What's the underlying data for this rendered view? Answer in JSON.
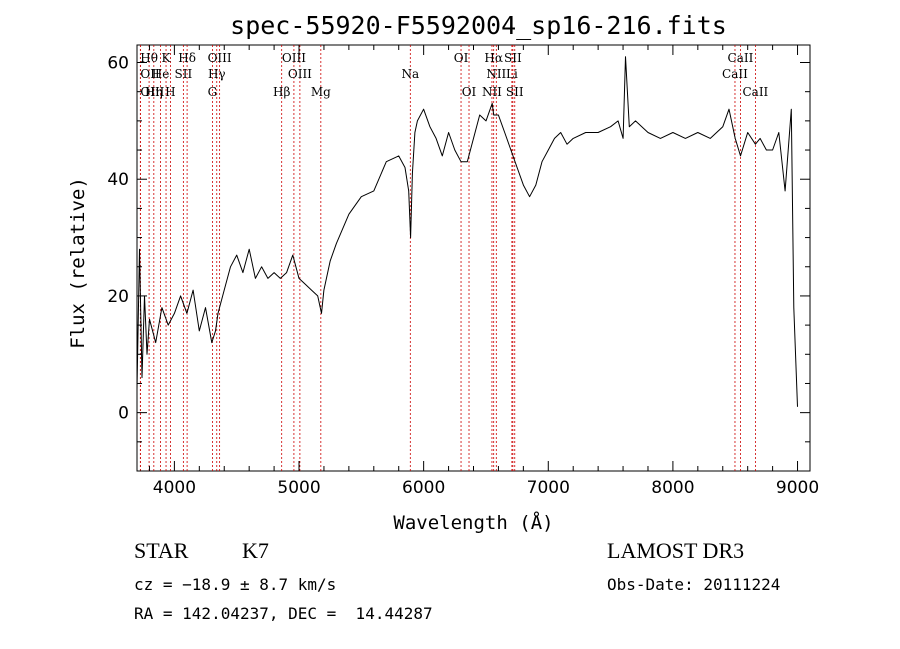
{
  "chart_data": {
    "type": "line",
    "title": "spec-55920-F5592004_sp16-216.fits",
    "xlabel": "Wavelength (Å)",
    "ylabel": "Flux (relative)",
    "xlim": [
      3700,
      9100
    ],
    "ylim": [
      -10,
      63
    ],
    "x_ticks": [
      4000,
      5000,
      6000,
      7000,
      8000,
      9000
    ],
    "y_ticks": [
      0,
      20,
      40,
      60
    ],
    "series": [
      {
        "name": "spectrum",
        "x": [
          3700,
          3720,
          3740,
          3760,
          3780,
          3800,
          3850,
          3900,
          3950,
          4000,
          4050,
          4100,
          4150,
          4200,
          4250,
          4300,
          4330,
          4350,
          4400,
          4450,
          4500,
          4550,
          4600,
          4650,
          4700,
          4750,
          4800,
          4850,
          4900,
          4950,
          5000,
          5050,
          5100,
          5150,
          5180,
          5200,
          5250,
          5300,
          5400,
          5500,
          5600,
          5700,
          5800,
          5850,
          5880,
          5895,
          5910,
          5930,
          5950,
          6000,
          6050,
          6100,
          6150,
          6200,
          6250,
          6300,
          6350,
          6400,
          6450,
          6500,
          6550,
          6562,
          6600,
          6650,
          6700,
          6750,
          6800,
          6850,
          6900,
          6950,
          7000,
          7050,
          7100,
          7150,
          7200,
          7300,
          7400,
          7500,
          7560,
          7600,
          7620,
          7650,
          7700,
          7800,
          7900,
          8000,
          8100,
          8200,
          8300,
          8400,
          8450,
          8500,
          8542,
          8600,
          8662,
          8700,
          8750,
          8800,
          8850,
          8900,
          8950,
          8970,
          9000
        ],
        "values": [
          4,
          28,
          6,
          20,
          10,
          16,
          12,
          18,
          15,
          17,
          20,
          17,
          21,
          14,
          18,
          12,
          14,
          17,
          21,
          25,
          27,
          24,
          28,
          23,
          25,
          23,
          24,
          23,
          24,
          27,
          23,
          22,
          21,
          20,
          17,
          21,
          26,
          29,
          34,
          37,
          38,
          43,
          44,
          42,
          38,
          30,
          41,
          48,
          50,
          52,
          49,
          47,
          44,
          48,
          45,
          43,
          43,
          47,
          51,
          50,
          53,
          51,
          51,
          48,
          45,
          42,
          39,
          37,
          39,
          43,
          45,
          47,
          48,
          46,
          47,
          48,
          48,
          49,
          50,
          47,
          61,
          49,
          50,
          48,
          47,
          48,
          47,
          48,
          47,
          49,
          52,
          47,
          44,
          48,
          46,
          47,
          45,
          45,
          48,
          38,
          52,
          18,
          1
        ]
      }
    ],
    "spectral_lines": [
      {
        "label": "Hθ",
        "x": 3797,
        "row": 0,
        "align": "middle"
      },
      {
        "label": "K",
        "x": 3933,
        "row": 0,
        "align": "middle"
      },
      {
        "label": "Hδ",
        "x": 4102,
        "row": 0,
        "align": "middle"
      },
      {
        "label": "OIII",
        "x": 4363,
        "row": 0,
        "align": "middle"
      },
      {
        "label": "OIII",
        "x": 4959,
        "row": 0,
        "align": "middle"
      },
      {
        "label": "OI",
        "x": 6300,
        "row": 0,
        "align": "middle"
      },
      {
        "label": "Hα",
        "x": 6562,
        "row": 0,
        "align": "middle"
      },
      {
        "label": "SII",
        "x": 6716,
        "row": 0,
        "align": "middle"
      },
      {
        "label": "CaII",
        "x": 8542,
        "row": 0,
        "align": "middle"
      },
      {
        "label": "OII",
        "x": 3727,
        "row": 1,
        "align": "start"
      },
      {
        "label": "He",
        "x": 3889,
        "row": 1,
        "align": "middle"
      },
      {
        "label": "SII",
        "x": 4072,
        "row": 1,
        "align": "middle"
      },
      {
        "label": "Hγ",
        "x": 4340,
        "row": 1,
        "align": "middle"
      },
      {
        "label": "OIII",
        "x": 5007,
        "row": 1,
        "align": "middle"
      },
      {
        "label": "Na",
        "x": 5893,
        "row": 1,
        "align": "middle"
      },
      {
        "label": "NII",
        "x": 6583,
        "row": 1,
        "align": "middle"
      },
      {
        "label": "Li",
        "x": 6708,
        "row": 1,
        "align": "middle"
      },
      {
        "label": "CaII",
        "x": 8498,
        "row": 1,
        "align": "middle"
      },
      {
        "label": "OIII",
        "x": 3727,
        "row": 2,
        "align": "start"
      },
      {
        "label": "Hη",
        "x": 3835,
        "row": 2,
        "align": "middle"
      },
      {
        "label": "H",
        "x": 3968,
        "row": 2,
        "align": "middle"
      },
      {
        "label": "G",
        "x": 4305,
        "row": 2,
        "align": "middle"
      },
      {
        "label": "Hβ",
        "x": 4861,
        "row": 2,
        "align": "middle"
      },
      {
        "label": "Mg",
        "x": 5175,
        "row": 2,
        "align": "middle"
      },
      {
        "label": "OI",
        "x": 6364,
        "row": 2,
        "align": "middle"
      },
      {
        "label": "NII",
        "x": 6548,
        "row": 2,
        "align": "middle"
      },
      {
        "label": "SII",
        "x": 6731,
        "row": 2,
        "align": "middle"
      },
      {
        "label": "CaII",
        "x": 8662,
        "row": 2,
        "align": "middle"
      }
    ],
    "colors": {
      "line": "#000000",
      "marker": "#cc0000",
      "axes": "#000000"
    }
  },
  "info": {
    "object_class": "STAR",
    "subclass": "K7",
    "redshift": "cz = −18.9 ± 8.7 km/s",
    "coords": "RA = 142.04237, DEC =  14.44287",
    "survey": "LAMOST DR3",
    "obs_date": "Obs-Date: 20111224"
  }
}
